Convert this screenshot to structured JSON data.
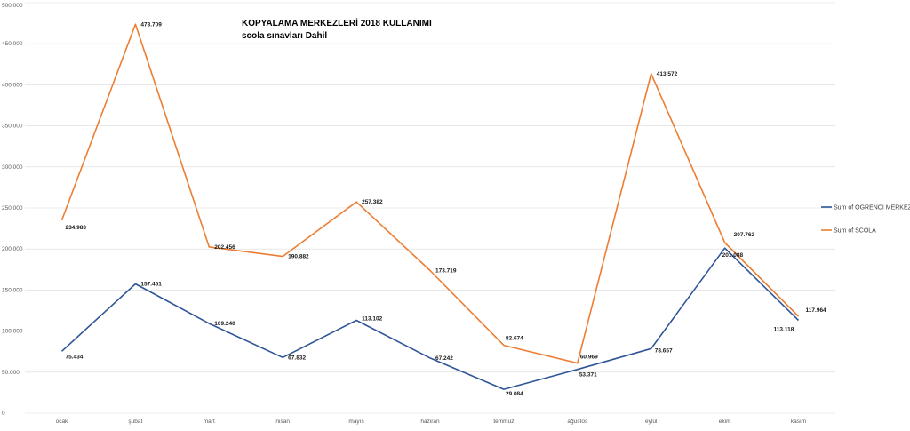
{
  "chart_data": {
    "type": "line",
    "title": "KOPYALAMA MERKEZLERİ 2018 KULLANIMI",
    "subtitle": "scola sınavları Dahil",
    "categories": [
      "ocak",
      "şubat",
      "mart",
      "nisan",
      "mayıs",
      "haziran",
      "temmuz",
      "ağustos",
      "eylül",
      "ekim",
      "kasım"
    ],
    "series": [
      {
        "name": "Sum of ÖĞRENCİ MERKEZİ",
        "color": "#2f5597",
        "values": [
          75434,
          157451,
          109240,
          67832,
          113102,
          67242,
          29084,
          53371,
          78657,
          201088,
          113118
        ],
        "labels": [
          "75.434",
          "157.451",
          "109.240",
          "67.832",
          "113.102",
          "67.242",
          "29.084",
          "53.371",
          "78.657",
          "201.088",
          "113.118"
        ]
      },
      {
        "name": "Sum of SCOLA",
        "color": "#ed7d31",
        "values": [
          234983,
          473709,
          202456,
          190882,
          257382,
          173719,
          82674,
          60969,
          413572,
          207762,
          117964
        ],
        "labels": [
          "234.983",
          "473.709",
          "202.456",
          "190.882",
          "257.382",
          "173.719",
          "82.674",
          "60.969",
          "413.572",
          "207.762",
          "117.964"
        ]
      }
    ],
    "ylim": [
      0,
      500000
    ],
    "yticks": [
      0,
      50000,
      100000,
      150000,
      200000,
      250000,
      300000,
      350000,
      400000,
      450000,
      500000
    ],
    "ytick_labels": [
      "0",
      "50.000",
      "100.000",
      "150.000",
      "200.000",
      "250.000",
      "300.000",
      "350.000",
      "400.000",
      "450.000",
      "500.000"
    ],
    "grid": true,
    "legend": "right"
  }
}
